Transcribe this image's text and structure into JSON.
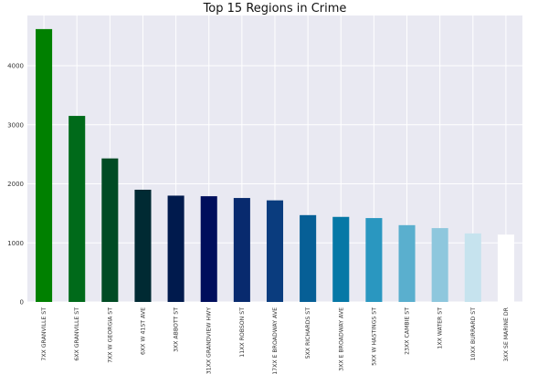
{
  "chart_data": {
    "type": "bar",
    "title": "Top 15 Regions in Crime",
    "xlabel": "",
    "ylabel": "",
    "categories": [
      "7XX GRANVILLE ST",
      "6XX GRANVILLE ST",
      "7XX W GEORGIA ST",
      "6XX W 41ST AVE",
      "3XX ABBOTT ST",
      "31XX GRANDVIEW HWY",
      "11XX ROBSON ST",
      "17XX E BROADWAY AVE",
      "5XX RICHARDS ST",
      "3XX E BROADWAY AVE",
      "5XX W HASTINGS ST",
      "23XX CAMBIE ST",
      "1XX WATER ST",
      "10XX BURRARD ST",
      "3XX SE MARINE DR"
    ],
    "values": [
      4620,
      3150,
      2430,
      1900,
      1800,
      1790,
      1760,
      1720,
      1470,
      1440,
      1420,
      1300,
      1250,
      1160,
      1140
    ],
    "bar_colors": [
      "#008000",
      "#006a1a",
      "#004b24",
      "#002a33",
      "#001a4d",
      "#000e5c",
      "#082a6e",
      "#0a3c7e",
      "#065f96",
      "#0678a6",
      "#2a97c0",
      "#5aafce",
      "#8ec7dd",
      "#c6e3ee",
      "#ffffff"
    ],
    "yticks": [
      0,
      1000,
      2000,
      3000,
      4000
    ],
    "ylim": [
      0,
      4850
    ],
    "grid": true,
    "plot_background": "#e9e9f2"
  }
}
